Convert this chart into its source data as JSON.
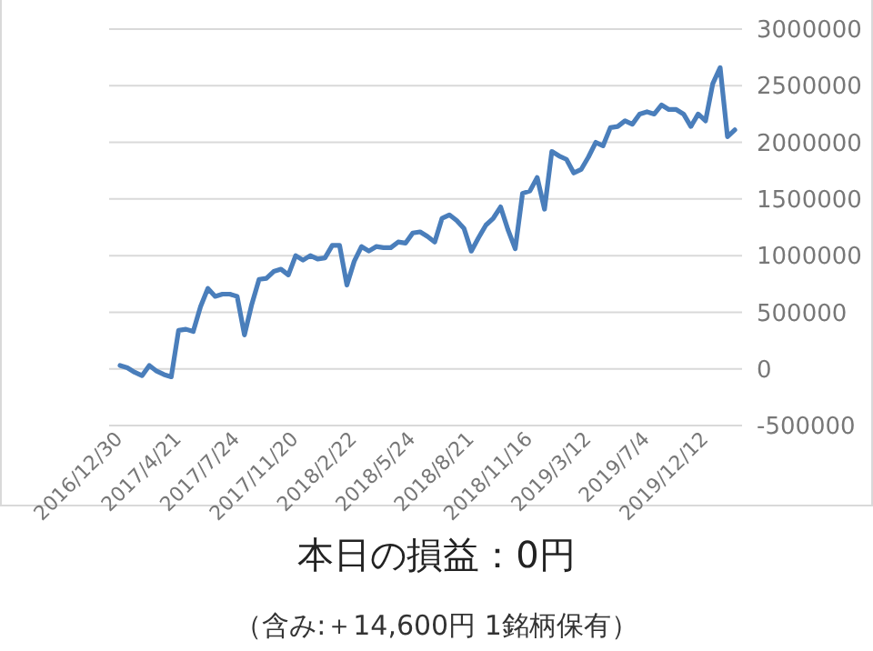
{
  "chart_data": {
    "type": "line",
    "title": "本日の損益：0円",
    "subtitle": "（含み:＋14,600円 1銘柄保有）",
    "categories": [
      "2016/12/30",
      null,
      null,
      null,
      null,
      null,
      null,
      null,
      "2017/4/21",
      null,
      null,
      null,
      null,
      null,
      null,
      null,
      "2017/7/24",
      null,
      null,
      null,
      null,
      null,
      null,
      null,
      "2017/11/20",
      null,
      null,
      null,
      null,
      null,
      null,
      null,
      "2018/2/22",
      null,
      null,
      null,
      null,
      null,
      null,
      null,
      "2018/5/24",
      null,
      null,
      null,
      null,
      null,
      null,
      null,
      "2018/8/21",
      null,
      null,
      null,
      null,
      null,
      null,
      null,
      "2018/11/16",
      null,
      null,
      null,
      null,
      null,
      null,
      null,
      "2019/3/12",
      null,
      null,
      null,
      null,
      null,
      null,
      null,
      "2019/7/4",
      null,
      null,
      null,
      null,
      null,
      null,
      null,
      "2019/12/12",
      null,
      null,
      null,
      null
    ],
    "series": [
      {
        "color": "#4a7ebb",
        "values": [
          30000,
          10000,
          -30000,
          -60000,
          30000,
          -20000,
          -50000,
          -70000,
          340000,
          350000,
          330000,
          550000,
          710000,
          640000,
          660000,
          660000,
          640000,
          300000,
          570000,
          790000,
          800000,
          860000,
          880000,
          830000,
          1000000,
          960000,
          1000000,
          970000,
          980000,
          1090000,
          1090000,
          740000,
          950000,
          1080000,
          1040000,
          1080000,
          1070000,
          1070000,
          1120000,
          1110000,
          1200000,
          1210000,
          1170000,
          1120000,
          1330000,
          1360000,
          1310000,
          1240000,
          1040000,
          1160000,
          1270000,
          1330000,
          1430000,
          1230000,
          1060000,
          1550000,
          1570000,
          1690000,
          1410000,
          1920000,
          1880000,
          1850000,
          1730000,
          1760000,
          1870000,
          2000000,
          1970000,
          2130000,
          2140000,
          2190000,
          2160000,
          2250000,
          2270000,
          2250000,
          2330000,
          2290000,
          2290000,
          2250000,
          2140000,
          2250000,
          2190000,
          2520000,
          2660000,
          2050000,
          2110000
        ]
      }
    ],
    "ylim": [
      -500000,
      3000000
    ],
    "yticks": [
      -500000,
      0,
      500000,
      1000000,
      1500000,
      2000000,
      2500000,
      3000000
    ],
    "grid": "y",
    "marker": "none",
    "line_style": "solid"
  }
}
